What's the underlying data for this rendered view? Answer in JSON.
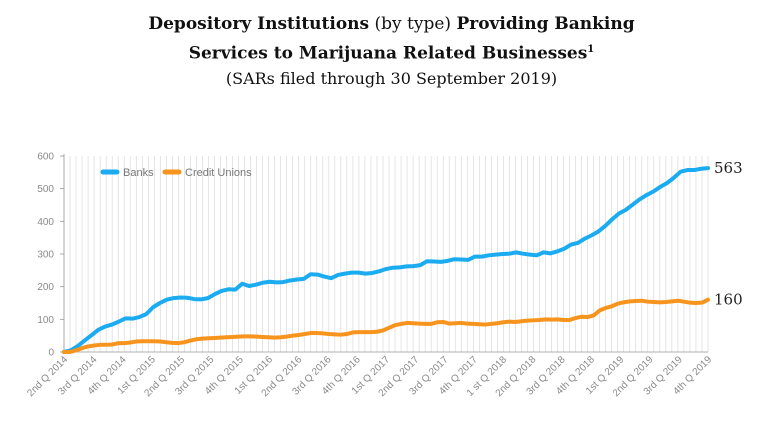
{
  "title": {
    "line1_bold_a": "Depository Institutions",
    "line1_normal": " (by type) ",
    "line1_bold_b": "Providing Banking",
    "line2": "Services to Marijuana Related Businesses",
    "line2_sup": "1",
    "line3": "(SARs filed through 30 September 2019)"
  },
  "chart_data": {
    "type": "line",
    "title": "Depository Institutions (by type) Providing Banking Services to Marijuana Related Businesses",
    "subtitle": "(SARs filed through 30 September 2019)",
    "xlabel": "",
    "ylabel": "",
    "ylim": [
      0,
      600
    ],
    "yticks": [
      0,
      100,
      200,
      300,
      400,
      500,
      600
    ],
    "grid": "vertical",
    "legend_position": "top-left",
    "x_tick_labels": [
      "2nd Q 2014",
      "3rd Q 2014",
      "4th Q 2014",
      "1st Q 2015",
      "2nd Q 2015",
      "3rd Q 2015",
      "4th Q 2015",
      "1st Q 2016",
      "2nd Q 2016",
      "3rd Q 2016",
      "4th Q 2016",
      "1st Q 2017",
      "2nd Q 2017",
      "3rd Q 2017",
      "4th Q 2017",
      "1 st Q 2018",
      "2nd Q 2018",
      "3rd Q 2018",
      "4th Q 2018",
      "1st Q 2019",
      "2nd Q 2019",
      "3rd Q 2019",
      "4th Q 2019"
    ],
    "series": [
      {
        "name": "Banks",
        "color": "#1aabf0",
        "end_label": "563",
        "values": [
          0,
          5,
          18,
          35,
          51,
          68,
          78,
          84,
          93,
          103,
          102,
          107,
          116,
          137,
          150,
          160,
          165,
          167,
          166,
          162,
          161,
          165,
          177,
          187,
          192,
          191,
          209,
          202,
          206,
          212,
          215,
          213,
          214,
          219,
          222,
          224,
          238,
          237,
          231,
          226,
          236,
          240,
          243,
          243,
          240,
          242,
          247,
          254,
          258,
          259,
          262,
          263,
          266,
          278,
          277,
          276,
          279,
          284,
          283,
          282,
          292,
          292,
          296,
          298,
          300,
          301,
          305,
          301,
          298,
          296,
          305,
          302,
          308,
          316,
          329,
          334,
          347,
          357,
          369,
          386,
          406,
          424,
          435,
          451,
          467,
          480,
          491,
          505,
          517,
          533,
          552,
          557,
          557,
          561,
          563
        ]
      },
      {
        "name": "Credit Unions",
        "color": "#f7941d",
        "end_label": "160",
        "values": [
          0,
          0,
          5,
          12,
          17,
          20,
          22,
          22,
          23,
          27,
          27,
          29,
          32,
          33,
          33,
          33,
          32,
          30,
          28,
          27,
          30,
          35,
          39,
          41,
          42,
          43,
          44,
          45,
          46,
          47,
          48,
          48,
          47,
          46,
          45,
          44,
          45,
          47,
          50,
          52,
          55,
          58,
          58,
          57,
          55,
          54,
          53,
          55,
          60,
          61,
          61,
          61,
          62,
          66,
          74,
          82,
          86,
          89,
          88,
          87,
          86,
          86,
          91,
          92,
          87,
          88,
          89,
          87,
          86,
          85,
          84,
          86,
          88,
          91,
          93,
          92,
          94,
          96,
          97,
          98,
          100,
          99,
          100,
          98,
          98,
          104,
          108,
          107,
          112,
          127,
          135,
          140,
          148,
          152,
          155,
          156,
          157,
          154,
          153,
          152,
          153,
          155,
          157,
          154,
          151,
          150,
          151,
          160
        ]
      }
    ]
  }
}
